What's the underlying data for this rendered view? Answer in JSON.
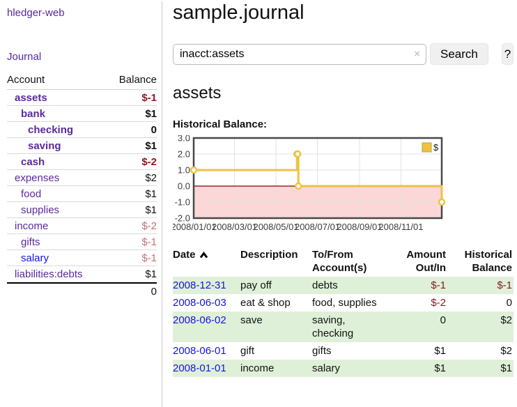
{
  "colors": {
    "link_purple": "#5a2a9d",
    "link_blue": "#1414e0",
    "negative_strong": "#8b1a21",
    "negative_soft": "#c47078",
    "row_green": "#dff0d8",
    "series_yellow": "#edc240",
    "negative_band_pink": "#fbd7d7",
    "zero_line_red": "#8b0000"
  },
  "app": {
    "brand": "hledger-web",
    "nav": {
      "journal": "Journal"
    }
  },
  "sidebar": {
    "header": {
      "account": "Account",
      "balance": "Balance"
    },
    "accounts": [
      {
        "name": "assets",
        "balance": "$-1",
        "indent": 1,
        "bold": true
      },
      {
        "name": "bank",
        "balance": "$1",
        "indent": 2,
        "bold": true
      },
      {
        "name": "checking",
        "balance": "0",
        "indent": 3,
        "bold": true
      },
      {
        "name": "saving",
        "balance": "$1",
        "indent": 3,
        "bold": true
      },
      {
        "name": "cash",
        "balance": "$-2",
        "indent": 2,
        "bold": true
      },
      {
        "name": "expenses",
        "balance": "$2",
        "indent": 1
      },
      {
        "name": "food",
        "balance": "$1",
        "indent": 2
      },
      {
        "name": "supplies",
        "balance": "$1",
        "indent": 2
      },
      {
        "name": "income",
        "balance": "$-2",
        "indent": 1
      },
      {
        "name": "gifts",
        "balance": "$-1",
        "indent": 2
      },
      {
        "name": "salary",
        "balance": "$-1",
        "indent": 2,
        "link": "blue"
      },
      {
        "name": "liabilities:debts",
        "balance": "$1",
        "indent": 1
      }
    ],
    "total": "0"
  },
  "page": {
    "title": "sample.journal",
    "account_heading": "assets",
    "chart_title": "Historical Balance:"
  },
  "search": {
    "value": "inacct:assets",
    "clear_icon": "×",
    "search_button": "Search",
    "help_button": "?"
  },
  "chart_data": {
    "type": "line",
    "step": true,
    "title": "Historical Balance",
    "series": [
      {
        "name": "$",
        "color": "#edc240",
        "points": [
          [
            "2008-01-01",
            1
          ],
          [
            "2008-06-01",
            2
          ],
          [
            "2008-06-02",
            2
          ],
          [
            "2008-06-03",
            0
          ],
          [
            "2008-12-31",
            -1
          ]
        ]
      }
    ],
    "x_range": [
      "2008-01-01",
      "2008-12-31"
    ],
    "ylim": [
      -2,
      3
    ],
    "y_ticks": [
      3,
      2,
      1,
      0,
      -1,
      -2
    ],
    "y_tick_labels": [
      "3.0",
      "2.0",
      "1.0",
      "0.0",
      "-1.0",
      "-2.0"
    ],
    "x_ticks": [
      "2008-01-01",
      "2008-03-01",
      "2008-05-01",
      "2008-07-01",
      "2008-09-01",
      "2008-11-01"
    ],
    "x_tick_labels": [
      "2008/01/01",
      "2008/03/01",
      "2008/05/01",
      "2008/07/01",
      "2008/09/01",
      "2008/11/01"
    ],
    "grid": true,
    "legend": {
      "label": "$",
      "position": "top-right"
    },
    "negative_region": true
  },
  "register": {
    "headers": {
      "date": "Date",
      "description": "Description",
      "tofrom": "To/From Account(s)",
      "amount": "Amount Out/In",
      "balance": "Historical Balance"
    },
    "rows": [
      {
        "date": "2008-12-31",
        "description": "pay off",
        "accounts": "debts",
        "amount": "$-1",
        "balance": "$-1"
      },
      {
        "date": "2008-06-03",
        "description": "eat & shop",
        "accounts": "food, supplies",
        "amount": "$-2",
        "balance": "0"
      },
      {
        "date": "2008-06-02",
        "description": "save",
        "accounts": "saving, checking",
        "amount": "0",
        "balance": "$2"
      },
      {
        "date": "2008-06-01",
        "description": "gift",
        "accounts": "gifts",
        "amount": "$1",
        "balance": "$2"
      },
      {
        "date": "2008-01-01",
        "description": "income",
        "accounts": "salary",
        "amount": "$1",
        "balance": "$1"
      }
    ]
  }
}
